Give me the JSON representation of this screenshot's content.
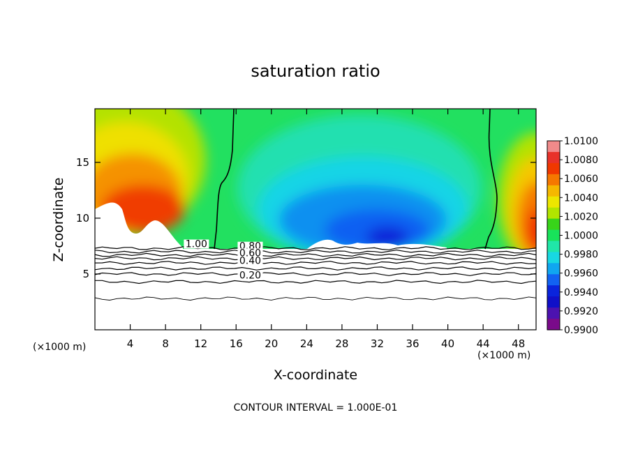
{
  "title": "saturation ratio",
  "footer": "CONTOUR INTERVAL = 1.000E-01",
  "colors": {
    "background": "#ffffff",
    "axes": "#000000",
    "contour": "#000000"
  },
  "chart_data": {
    "type": "heatmap",
    "title": "saturation ratio",
    "xlabel": "X-coordinate",
    "ylabel": "Z-coordinate",
    "x_unit": "(×1000 m)",
    "xlim": [
      0,
      50
    ],
    "ylim": [
      0,
      19.8
    ],
    "xticks": [
      4,
      8,
      12,
      16,
      20,
      24,
      28,
      32,
      36,
      40,
      44,
      48
    ],
    "yticks": [
      5,
      10,
      15
    ],
    "colorbar": {
      "range": [
        0.99,
        1.01
      ],
      "labels": [
        "1.0100",
        "1.0080",
        "1.0060",
        "1.0040",
        "1.0020",
        "1.0000",
        "0.9980",
        "0.9960",
        "0.9940",
        "0.9920",
        "0.9900"
      ],
      "colors": [
        "#f08a8a",
        "#e8322a",
        "#f03800",
        "#f57800",
        "#f5b800",
        "#ede600",
        "#b2e400",
        "#38d41a",
        "#18e25a",
        "#20e6a8",
        "#18d8e2",
        "#10a6f0",
        "#1262f2",
        "#0a24dc",
        "#1010c8",
        "#4c12b0",
        "#7a0a8a"
      ]
    },
    "contour_lines": {
      "interval": 0.1,
      "labels": [
        {
          "text": "1.00",
          "x": 11.5,
          "z": 7.4
        },
        {
          "text": "0.80",
          "x": 17.6,
          "z": 7.2
        },
        {
          "text": "0.60",
          "x": 17.6,
          "z": 6.6
        },
        {
          "text": "0.40",
          "x": 17.6,
          "z": 5.9
        },
        {
          "text": "0.20",
          "x": 17.6,
          "z": 4.6
        }
      ]
    }
  }
}
